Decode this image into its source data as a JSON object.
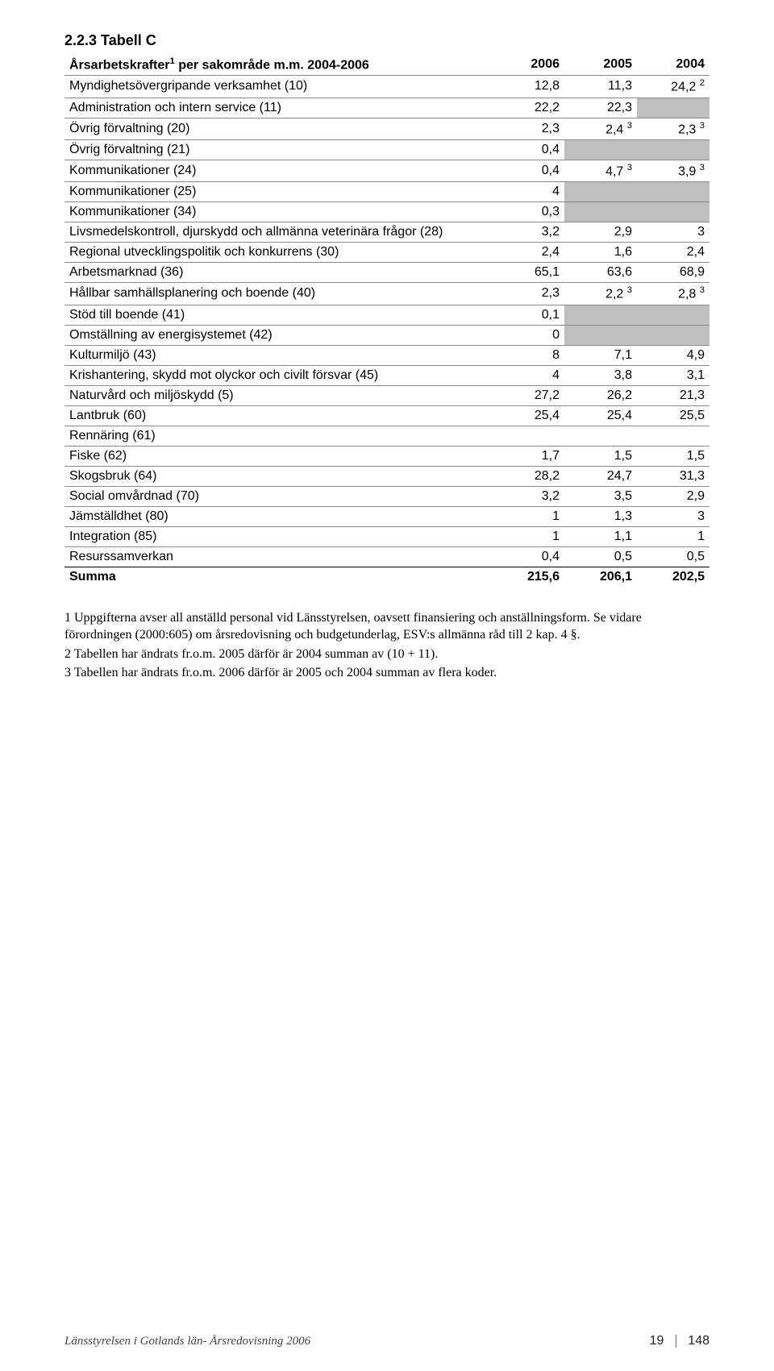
{
  "section_number": "2.2.3 Tabell C",
  "table": {
    "title_html": "Årsarbetskrafter¹ per sakområde m.m. 2004-2006",
    "columns": [
      "2006",
      "2005",
      "2004"
    ],
    "rows": [
      {
        "label": "Myndighetsövergripande verksamhet (10)",
        "v": [
          "12,8",
          "11,3",
          "24,2 ²"
        ],
        "shadeCols": []
      },
      {
        "label": "Administration och intern service (11)",
        "v": [
          "22,2",
          "22,3",
          ""
        ],
        "shadeCols": [
          2
        ]
      },
      {
        "label": "Övrig förvaltning (20)",
        "v": [
          "2,3",
          "2,4 ³",
          "2,3 ³"
        ],
        "shadeCols": []
      },
      {
        "label": "Övrig förvaltning (21)",
        "v": [
          "0,4",
          "",
          ""
        ],
        "shadeCols": [
          1,
          2
        ]
      },
      {
        "label": "Kommunikationer (24)",
        "v": [
          "0,4",
          "4,7 ³",
          "3,9 ³"
        ],
        "shadeCols": []
      },
      {
        "label": "Kommunikationer (25)",
        "v": [
          "4",
          "",
          ""
        ],
        "shadeCols": [
          1,
          2
        ]
      },
      {
        "label": "Kommunikationer (34)",
        "v": [
          "0,3",
          "",
          ""
        ],
        "shadeCols": [
          1,
          2
        ]
      },
      {
        "label": "Livsmedelskontroll, djurskydd och allmänna veterinära frågor (28)",
        "v": [
          "3,2",
          "2,9",
          "3"
        ],
        "shadeCols": []
      },
      {
        "label": "Regional utvecklingspolitik och konkurrens (30)",
        "v": [
          "2,4",
          "1,6",
          "2,4"
        ],
        "shadeCols": []
      },
      {
        "label": "Arbetsmarknad (36)",
        "v": [
          "65,1",
          "63,6",
          "68,9"
        ],
        "shadeCols": []
      },
      {
        "label": "Hållbar samhällsplanering och boende (40)",
        "v": [
          "2,3",
          "2,2 ³",
          "2,8 ³"
        ],
        "shadeCols": []
      },
      {
        "label": "Stöd till boende (41)",
        "v": [
          "0,1",
          "",
          ""
        ],
        "shadeCols": [
          1,
          2
        ]
      },
      {
        "label": "Omställning av energisystemet (42)",
        "v": [
          "0",
          "",
          ""
        ],
        "shadeCols": [
          1,
          2
        ]
      },
      {
        "label": "Kulturmiljö (43)",
        "v": [
          "8",
          "7,1",
          "4,9"
        ],
        "shadeCols": []
      },
      {
        "label": "Krishantering, skydd mot olyckor och civilt försvar (45)",
        "v": [
          "4",
          "3,8",
          "3,1"
        ],
        "shadeCols": []
      },
      {
        "label": "Naturvård och miljöskydd (5)",
        "v": [
          "27,2",
          "26,2",
          "21,3"
        ],
        "shadeCols": []
      },
      {
        "label": "Lantbruk (60)",
        "v": [
          "25,4",
          "25,4",
          "25,5"
        ],
        "shadeCols": []
      },
      {
        "label": "Rennäring (61)",
        "v": [
          "",
          "",
          ""
        ],
        "shadeCols": []
      },
      {
        "label": "Fiske (62)",
        "v": [
          "1,7",
          "1,5",
          "1,5"
        ],
        "shadeCols": []
      },
      {
        "label": "Skogsbruk (64)",
        "v": [
          "28,2",
          "24,7",
          "31,3"
        ],
        "shadeCols": []
      },
      {
        "label": "Social omvårdnad (70)",
        "v": [
          "3,2",
          "3,5",
          "2,9"
        ],
        "shadeCols": []
      },
      {
        "label": "Jämställdhet (80)",
        "v": [
          "1",
          "1,3",
          "3"
        ],
        "shadeCols": []
      },
      {
        "label": "Integration (85)",
        "v": [
          "1",
          "1,1",
          "1"
        ],
        "shadeCols": []
      },
      {
        "label": "Resurssamverkan",
        "v": [
          "0,4",
          "0,5",
          "0,5"
        ],
        "shadeCols": []
      }
    ],
    "sum": {
      "label": "Summa",
      "v": [
        "215,6",
        "206,1",
        "202,5"
      ]
    }
  },
  "notes": [
    "1 Uppgifterna avser all anställd personal vid Länsstyrelsen, oavsett finansiering och anställningsform. Se vidare förordningen (2000:605) om årsredovisning och budgetunderlag, ESV:s allmänna råd till 2 kap. 4 §.",
    "2 Tabellen har ändrats fr.o.m. 2005 därför är 2004 summan av (10 + 11).",
    "3 Tabellen har ändrats fr.o.m. 2006 därför är 2005 och 2004 summan av flera koder."
  ],
  "footer": {
    "left": "Länsstyrelsen i Gotlands län- Årsredovisning 2006",
    "page": "19",
    "total": "148"
  }
}
